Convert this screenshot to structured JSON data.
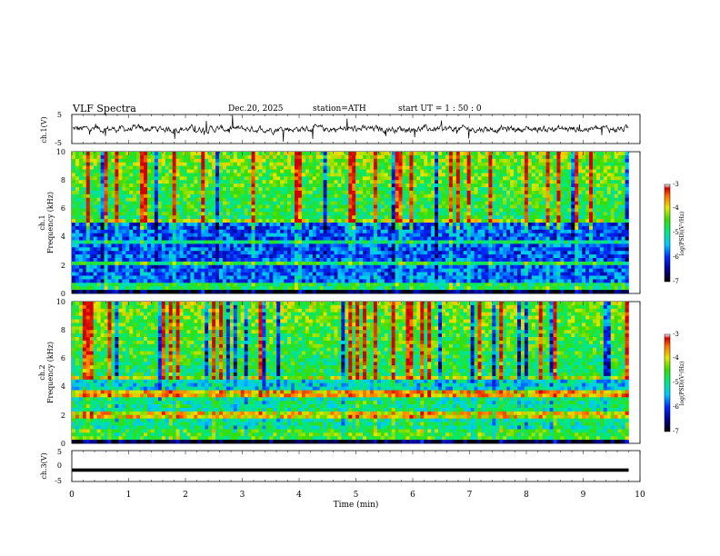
{
  "header": {
    "title": "VLF  Spectra",
    "date": "Dec.20, 2025",
    "station": "station=ATH",
    "start_ut": "start  UT  =   1  : 50 : 0"
  },
  "chart_data": [
    {
      "type": "line",
      "name": "ch1-waveform",
      "ylabel": "ch.1(V)",
      "ylim": [
        -5,
        5
      ],
      "yticks": [
        "5",
        "-5"
      ],
      "xlim": [
        0,
        10
      ],
      "baseline": 0
    },
    {
      "type": "heatmap",
      "name": "ch1-spectrogram",
      "ylabel_line1": "ch.1",
      "ylabel_line2": "Frequency  (kHz)",
      "ylim": [
        0,
        10
      ],
      "yticks": [
        "0",
        "2",
        "4",
        "6",
        "8",
        "10"
      ],
      "xlim": [
        0,
        10
      ],
      "colorbar": {
        "label": "log(PSD)(V²/Hz)",
        "range": [
          -7,
          -3
        ],
        "ticks": [
          "-3",
          "-4",
          "-5",
          "-6",
          "-7"
        ]
      }
    },
    {
      "type": "heatmap",
      "name": "ch2-spectrogram",
      "ylabel_line1": "ch.2",
      "ylabel_line2": "Frequency  (kHz)",
      "ylim": [
        0,
        10
      ],
      "yticks": [
        "0",
        "2",
        "4",
        "6",
        "8",
        "10"
      ],
      "xlim": [
        0,
        10
      ],
      "colorbar": {
        "label": "log(PSD)(V²/Hz)",
        "range": [
          -7,
          -3
        ],
        "ticks": [
          "-3",
          "-4",
          "-5",
          "-6",
          "-7"
        ]
      }
    },
    {
      "type": "line",
      "name": "ch3-waveform",
      "ylabel": "ch.3(V)",
      "ylim": [
        -5,
        5
      ],
      "yticks": [
        "5",
        "0",
        "-5"
      ],
      "xlim": [
        0,
        10
      ],
      "baseline": -1.3
    }
  ],
  "xaxis": {
    "label": "Time  (min)",
    "ticks": [
      "0",
      "1",
      "2",
      "3",
      "4",
      "5",
      "6",
      "7",
      "8",
      "9",
      "10"
    ],
    "data_end": 9.8
  }
}
